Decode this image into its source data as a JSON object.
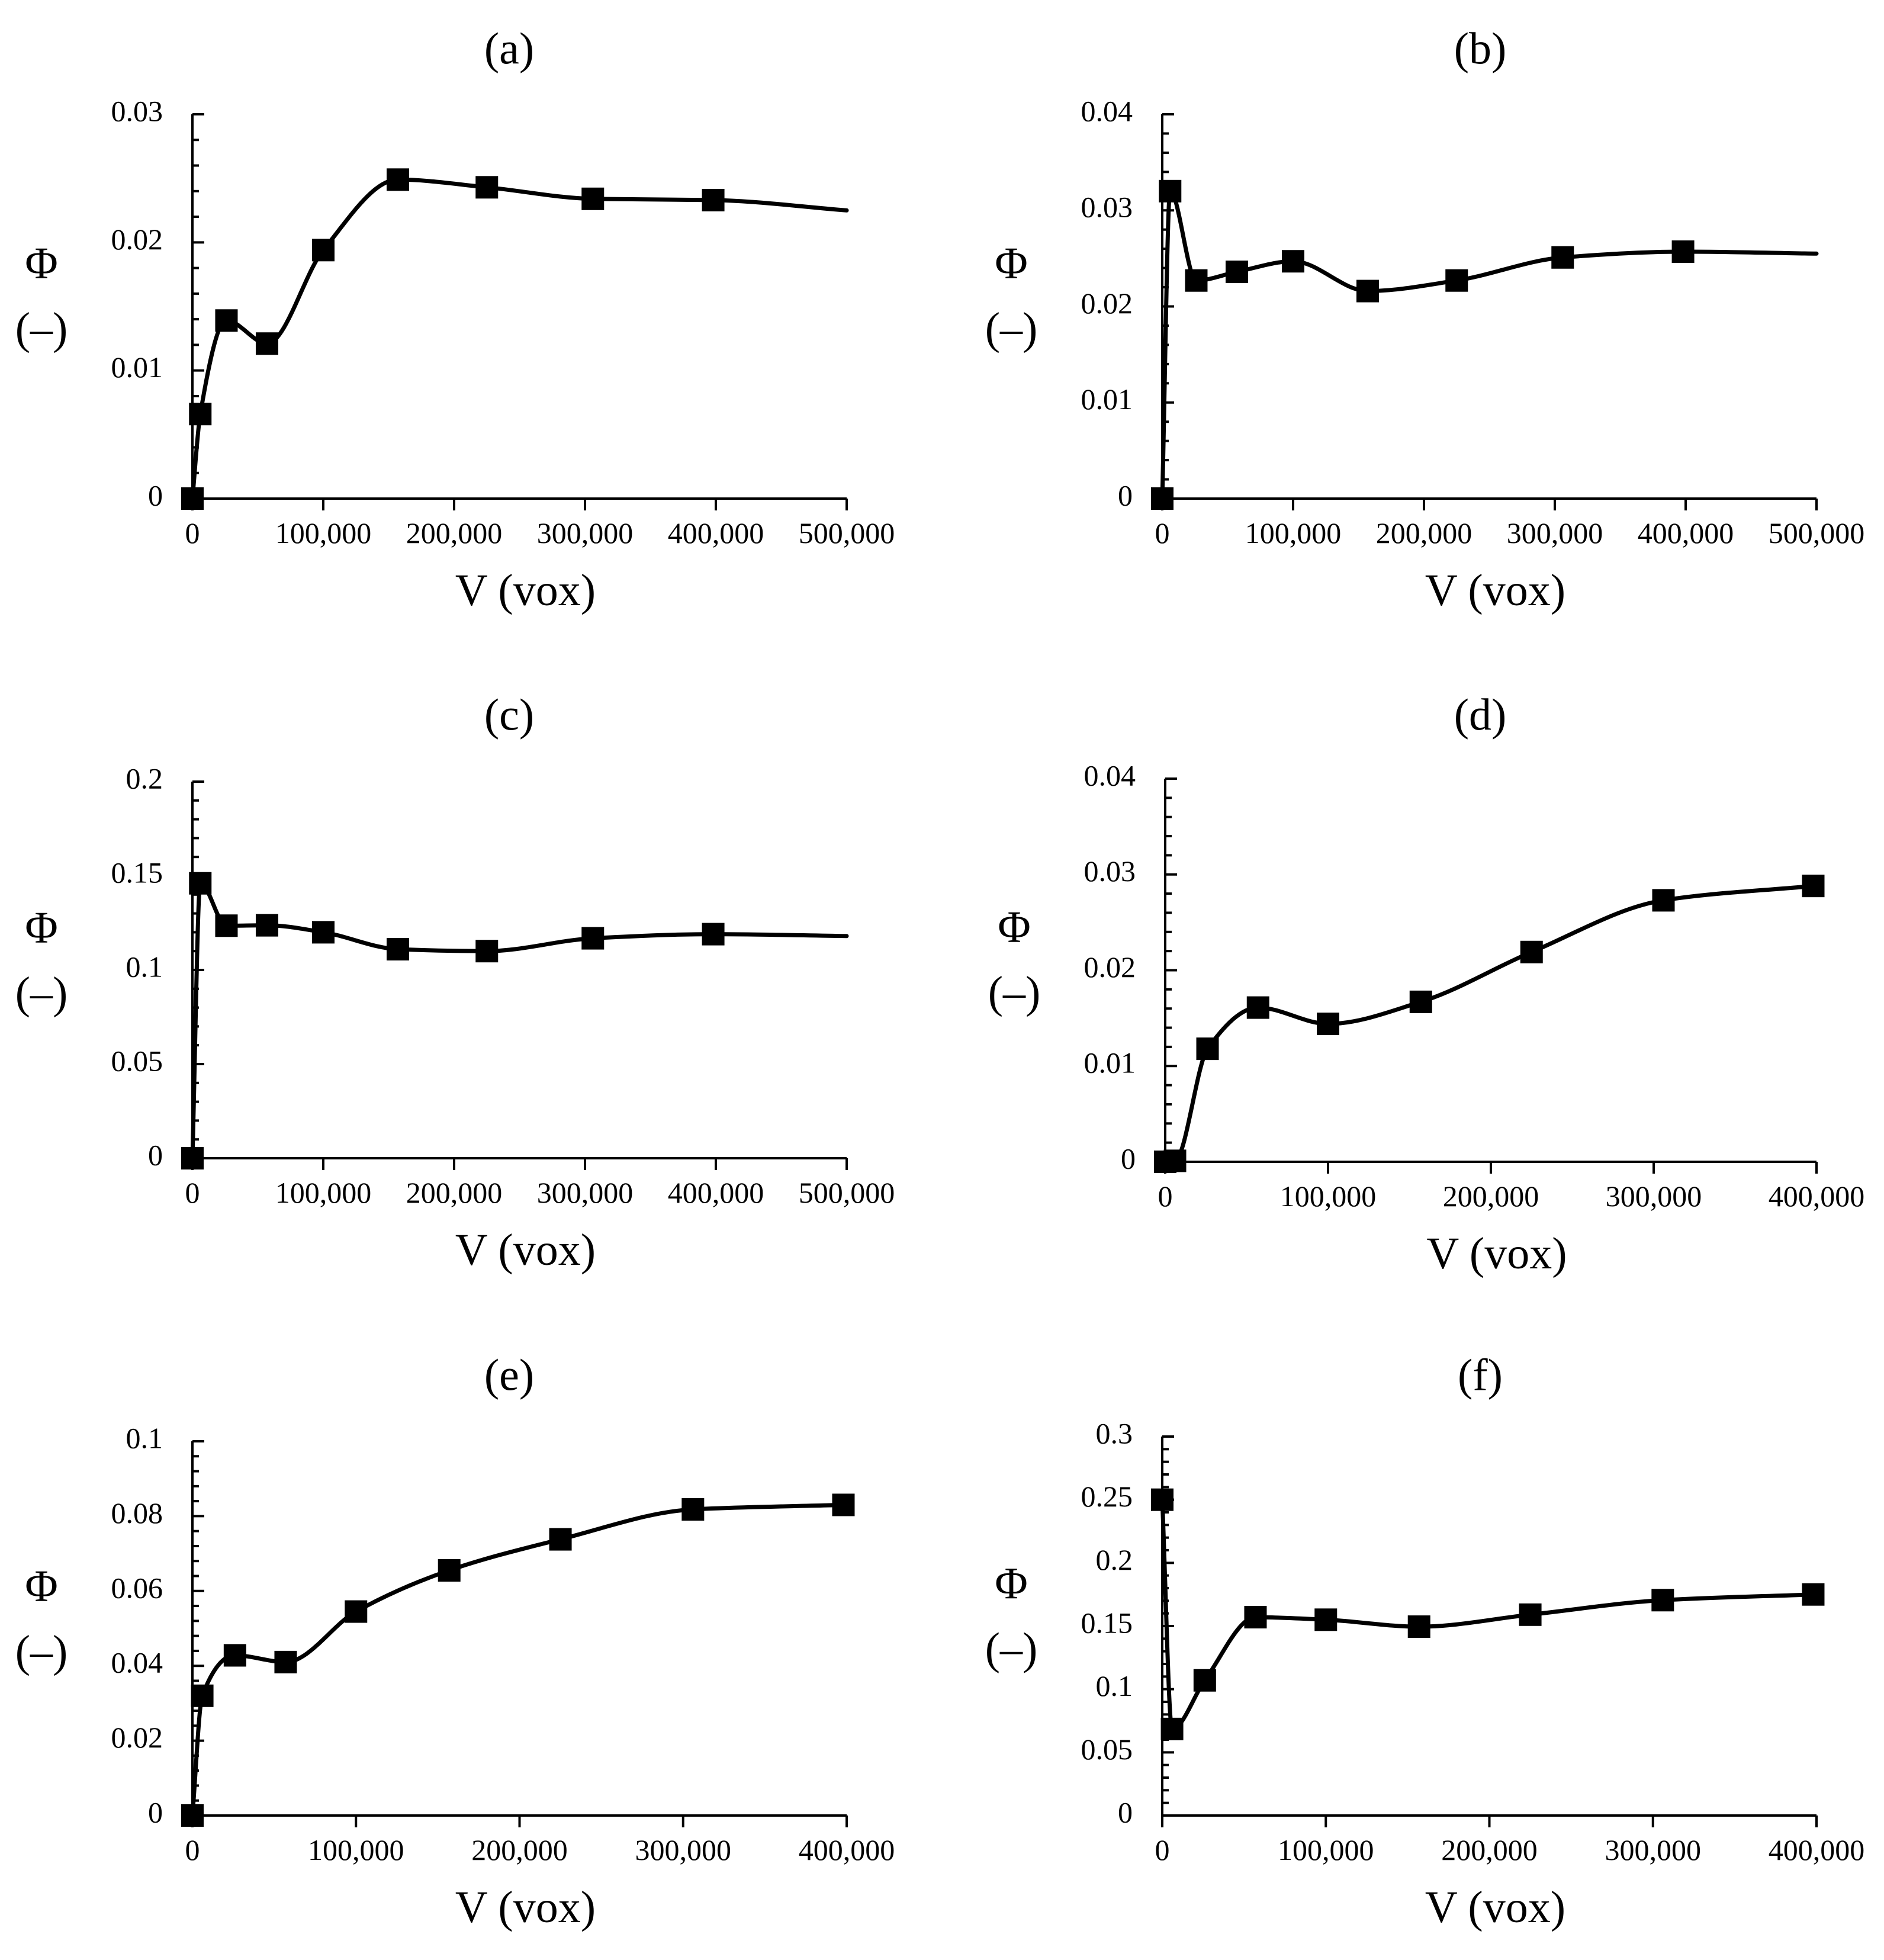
{
  "chart_data": [
    {
      "type": "line",
      "panel_label": "(a)",
      "xlabel": "V (vox)",
      "ylabel_symbol": "Φ",
      "ylabel_unit": "(–)",
      "xlim": [
        0,
        500000
      ],
      "ylim": [
        0,
        0.03
      ],
      "xticks": [
        0,
        100000,
        200000,
        300000,
        400000,
        500000
      ],
      "xtick_labels": [
        "0",
        "100,000",
        "200,000",
        "300,000",
        "400,000",
        "500,000"
      ],
      "yticks": [
        0,
        0.01,
        0.02,
        0.03
      ],
      "ytick_labels": [
        "0",
        "0.01",
        "0.02",
        "0.03"
      ],
      "x": [
        0,
        6000,
        26000,
        57000,
        100000,
        157000,
        225000,
        306000,
        398000,
        500000
      ],
      "y": [
        0,
        0.0066,
        0.0139,
        0.0121,
        0.0194,
        0.0249,
        0.0243,
        0.0234,
        0.0233,
        0.0225
      ],
      "marker_count": 9
    },
    {
      "type": "line",
      "panel_label": "(b)",
      "xlabel": "V (vox)",
      "ylabel_symbol": "Φ",
      "ylabel_unit": "(–)",
      "xlim": [
        0,
        500000
      ],
      "ylim": [
        0,
        0.04
      ],
      "xticks": [
        0,
        100000,
        200000,
        300000,
        400000,
        500000
      ],
      "xtick_labels": [
        "0",
        "100,000",
        "200,000",
        "300,000",
        "400,000",
        "500,000"
      ],
      "yticks": [
        0,
        0.01,
        0.02,
        0.03,
        0.04
      ],
      "ytick_labels": [
        "0",
        "0.01",
        "0.02",
        "0.03",
        "0.04"
      ],
      "x": [
        0,
        6000,
        26000,
        57000,
        100000,
        157000,
        225000,
        306000,
        398000,
        500000
      ],
      "y": [
        0,
        0.032,
        0.0227,
        0.0236,
        0.0247,
        0.0216,
        0.0227,
        0.0251,
        0.0257,
        0.0255
      ],
      "marker_count": 9
    },
    {
      "type": "line",
      "panel_label": "(c)",
      "xlabel": "V (vox)",
      "ylabel_symbol": "Φ",
      "ylabel_unit": "(–)",
      "xlim": [
        0,
        500000
      ],
      "ylim": [
        0,
        0.2
      ],
      "xticks": [
        0,
        100000,
        200000,
        300000,
        400000,
        500000
      ],
      "xtick_labels": [
        "0",
        "100,000",
        "200,000",
        "300,000",
        "400,000",
        "500,000"
      ],
      "yticks": [
        0,
        0.05,
        0.1,
        0.15,
        0.2
      ],
      "ytick_labels": [
        "0",
        "0.05",
        "0.1",
        "0.15",
        "0.2"
      ],
      "x": [
        0,
        6000,
        26000,
        57000,
        100000,
        157000,
        225000,
        306000,
        398000,
        500000
      ],
      "y": [
        0,
        0.146,
        0.1235,
        0.1237,
        0.12,
        0.111,
        0.11,
        0.1168,
        0.119,
        0.118
      ],
      "marker_count": 9
    },
    {
      "type": "line",
      "panel_label": "(d)",
      "xlabel": "V (vox)",
      "ylabel_symbol": "Φ",
      "ylabel_unit": "(–)",
      "xlim": [
        0,
        400000
      ],
      "ylim": [
        0,
        0.04
      ],
      "xticks": [
        0,
        100000,
        200000,
        300000,
        400000
      ],
      "xtick_labels": [
        "0",
        "100,000",
        "200,000",
        "300,000",
        "400,000"
      ],
      "yticks": [
        0,
        0.01,
        0.02,
        0.03,
        0.04
      ],
      "ytick_labels": [
        "0",
        "0.01",
        "0.02",
        "0.03",
        "0.04"
      ],
      "x": [
        0,
        6000,
        26000,
        57000,
        100000,
        157000,
        225000,
        306000,
        398000
      ],
      "y": [
        0,
        0.0001,
        0.0118,
        0.0161,
        0.0144,
        0.0167,
        0.0219,
        0.0273,
        0.0288
      ],
      "marker_count": 9
    },
    {
      "type": "line",
      "panel_label": "(e)",
      "xlabel": "V (vox)",
      "ylabel_symbol": "Φ",
      "ylabel_unit": "(–)",
      "xlim": [
        0,
        400000
      ],
      "ylim": [
        0,
        0.1
      ],
      "xticks": [
        0,
        100000,
        200000,
        300000,
        400000
      ],
      "xtick_labels": [
        "0",
        "100,000",
        "200,000",
        "300,000",
        "400,000"
      ],
      "yticks": [
        0,
        0.02,
        0.04,
        0.06,
        0.08,
        0.1
      ],
      "ytick_labels": [
        "0",
        "0.02",
        "0.04",
        "0.06",
        "0.08",
        "0.1"
      ],
      "x": [
        0,
        6000,
        26000,
        57000,
        100000,
        157000,
        225000,
        306000,
        398000
      ],
      "y": [
        0,
        0.032,
        0.0428,
        0.041,
        0.0545,
        0.0655,
        0.0738,
        0.0818,
        0.083
      ],
      "marker_count": 9
    },
    {
      "type": "line",
      "panel_label": "(f)",
      "xlabel": "V (vox)",
      "ylabel_symbol": "Φ",
      "ylabel_unit": "(–)",
      "xlim": [
        0,
        400000
      ],
      "ylim": [
        0,
        0.3
      ],
      "xticks": [
        0,
        100000,
        200000,
        300000,
        400000
      ],
      "xtick_labels": [
        "0",
        "100,000",
        "200,000",
        "300,000",
        "400,000"
      ],
      "yticks": [
        0,
        0.05,
        0.1,
        0.15,
        0.2,
        0.25,
        0.3
      ],
      "ytick_labels": [
        "0",
        "0.05",
        "0.1",
        "0.15",
        "0.2",
        "0.25",
        "0.3"
      ],
      "x": [
        0,
        6000,
        26000,
        57000,
        100000,
        157000,
        225000,
        306000,
        398000
      ],
      "y": [
        0.25,
        0.0685,
        0.107,
        0.157,
        0.155,
        0.1495,
        0.159,
        0.1705,
        0.175
      ],
      "marker_count": 9
    }
  ]
}
